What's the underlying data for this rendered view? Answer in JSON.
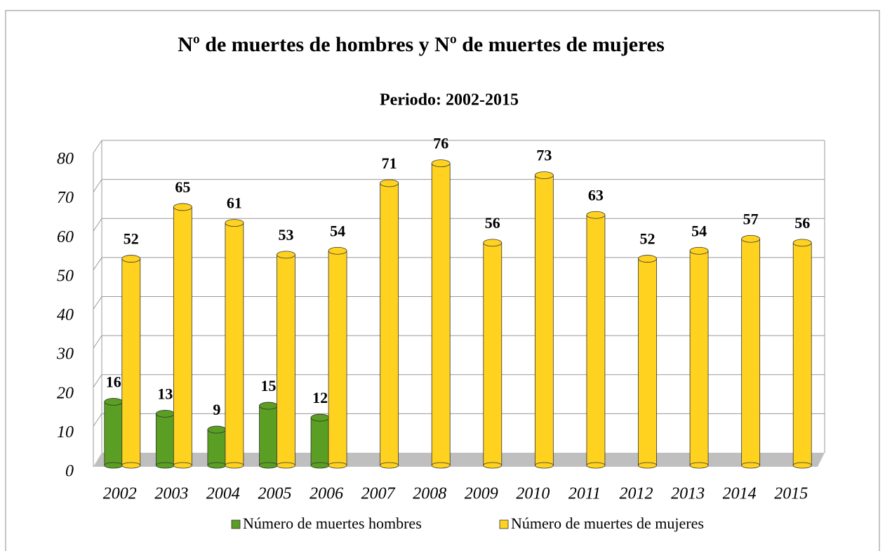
{
  "chart_data": {
    "type": "bar",
    "title": "Nº de muertes de hombres y Nº de muertes de mujeres",
    "subtitle": "Periodo: 2002-2015",
    "categories": [
      "2002",
      "2003",
      "2004",
      "2005",
      "2006",
      "2007",
      "2008",
      "2009",
      "2010",
      "2011",
      "2012",
      "2013",
      "2014",
      "2015"
    ],
    "series": [
      {
        "name": "Número de muertes hombres",
        "color": "#5a9e23",
        "values": [
          16,
          13,
          9,
          15,
          12,
          null,
          null,
          null,
          null,
          null,
          null,
          null,
          null,
          null
        ]
      },
      {
        "name": "Número de muertes de mujeres",
        "color": "#ffd21f",
        "values": [
          52,
          65,
          61,
          53,
          54,
          71,
          76,
          56,
          73,
          63,
          52,
          54,
          57,
          56
        ]
      }
    ],
    "ylim": [
      0,
      80
    ],
    "yticks": [
      0,
      10,
      20,
      30,
      40,
      50,
      60,
      70,
      80
    ],
    "grid": true,
    "legend": "bottom"
  }
}
